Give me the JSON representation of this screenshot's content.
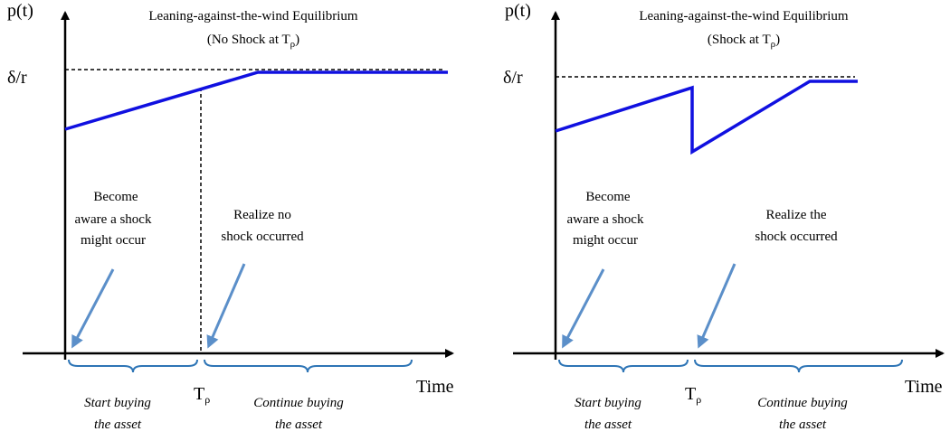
{
  "panels": [
    {
      "axis_label": "p(t)",
      "level_label": "δ/r",
      "title": "Leaning-against-the-wind Equilibrium",
      "subtitle": {
        "text": "(No Shock at T",
        "subscript": "ρ",
        "close": ")"
      },
      "x_axis_label": "Time",
      "time_marker": {
        "text": "T",
        "subscript": "ρ"
      },
      "left_note": [
        "Become",
        "aware a shock",
        "might occur"
      ],
      "right_note": [
        "Realize no",
        "shock occurred"
      ],
      "left_phase": [
        "Start buying",
        "the asset"
      ],
      "right_phase": [
        "Continue buying",
        "the asset"
      ]
    },
    {
      "axis_label": "p(t)",
      "level_label": "δ/r",
      "title": "Leaning-against-the-wind Equilibrium",
      "subtitle": {
        "text": "(Shock at T",
        "subscript": "ρ",
        "close": ")"
      },
      "x_axis_label": "Time",
      "time_marker": {
        "text": "T",
        "subscript": "ρ"
      },
      "left_note": [
        "Become",
        "aware a shock",
        "might occur"
      ],
      "right_note": [
        "Realize the",
        "shock occurred"
      ],
      "left_phase": [
        "Start buying",
        "the asset"
      ],
      "right_phase": [
        "Continue buying",
        "the asset"
      ]
    }
  ]
}
